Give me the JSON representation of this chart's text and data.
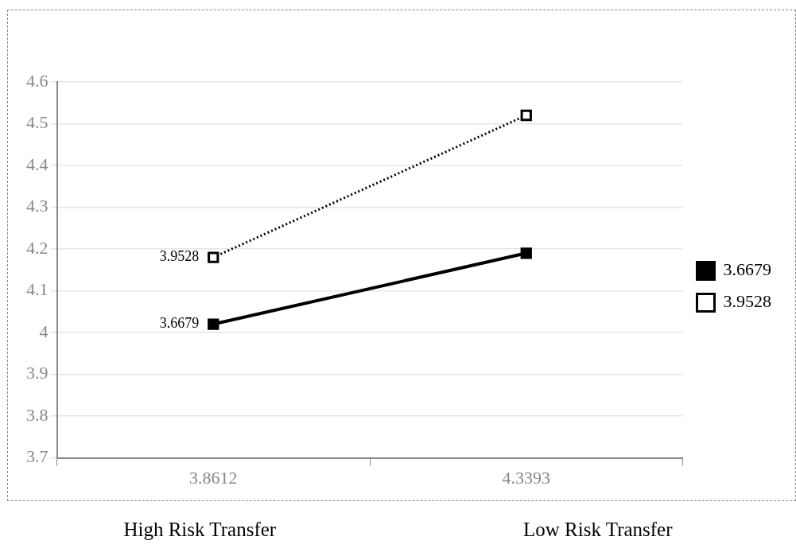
{
  "chart_data": {
    "type": "line",
    "categories": [
      "3.8612",
      "4.3393"
    ],
    "series": [
      {
        "name": "3.6679",
        "color": "#000000",
        "values": [
          4.02,
          4.19
        ],
        "line_style": "solid"
      },
      {
        "name": "3.9528",
        "color": "#000000",
        "values": [
          4.18,
          4.52
        ],
        "line_style": "dotted"
      }
    ],
    "ylim": [
      3.7,
      4.6
    ],
    "yticks": [
      3.7,
      3.8,
      3.9,
      4,
      4.1,
      4.2,
      4.3,
      4.4,
      4.5,
      4.6
    ],
    "grid": "y",
    "legend": "right",
    "marker": "square",
    "annotations": [
      {
        "text": "3.6679",
        "x": "3.8612",
        "y": 4.02
      },
      {
        "text": "3.9528",
        "x": "3.8612",
        "y": 4.18
      },
      "High Risk Transfer",
      "Low Risk Transfer"
    ]
  }
}
